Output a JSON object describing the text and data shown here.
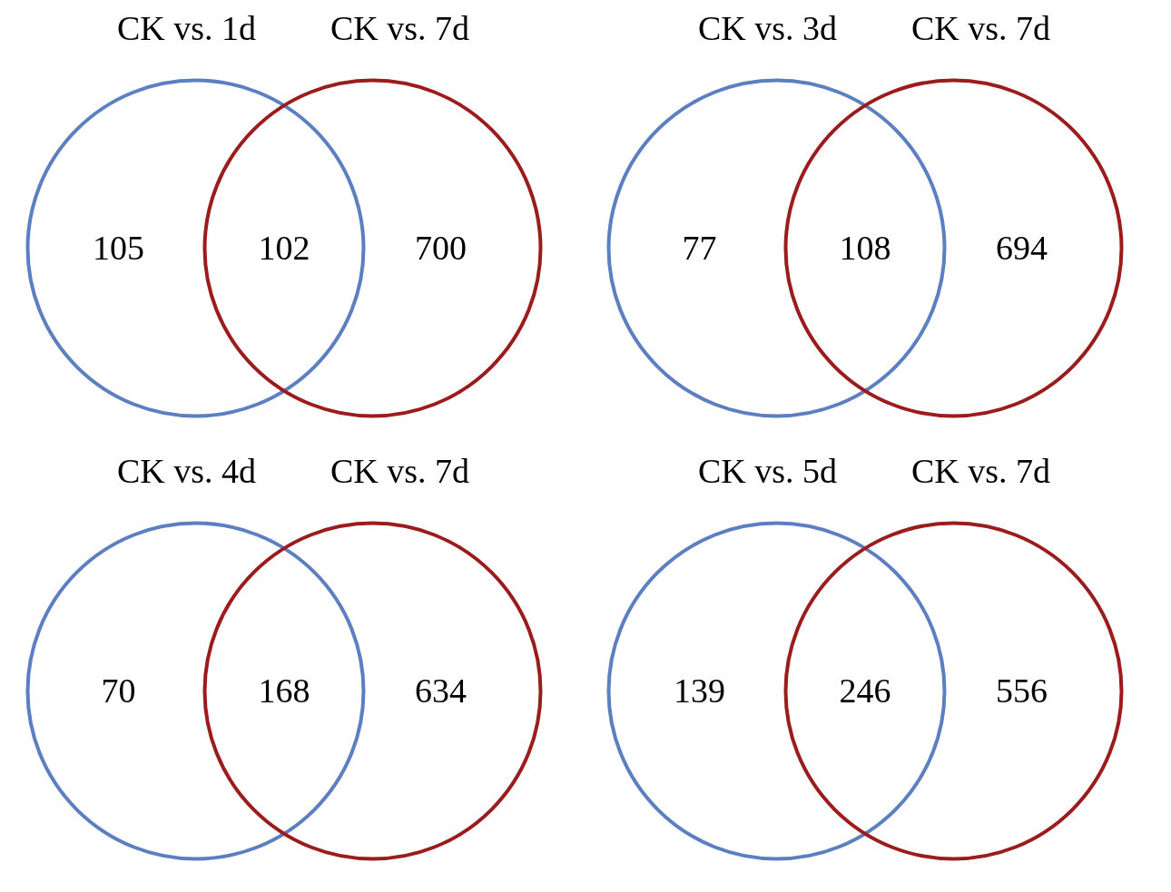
{
  "chart_data": [
    {
      "type": "other",
      "categories": [
        null,
        null,
        null
      ],
      "values": [
        105,
        102,
        700
      ],
      "data_labels": true,
      "annotations": [
        "CK vs. 1d",
        "CK vs. 7d"
      ]
    },
    {
      "type": "other",
      "categories": [
        null,
        null,
        null
      ],
      "values": [
        77,
        108,
        694
      ],
      "data_labels": true,
      "annotations": [
        "CK vs. 3d",
        "CK vs. 7d"
      ]
    },
    {
      "type": "other",
      "categories": [
        null,
        null,
        null
      ],
      "values": [
        70,
        168,
        634
      ],
      "data_labels": true,
      "annotations": [
        "CK vs. 4d",
        "CK vs. 7d"
      ]
    },
    {
      "type": "other",
      "categories": [
        null,
        null,
        null
      ],
      "values": [
        139,
        246,
        556
      ],
      "data_labels": true,
      "annotations": [
        "CK vs. 5d",
        "CK vs. 7d"
      ]
    }
  ]
}
